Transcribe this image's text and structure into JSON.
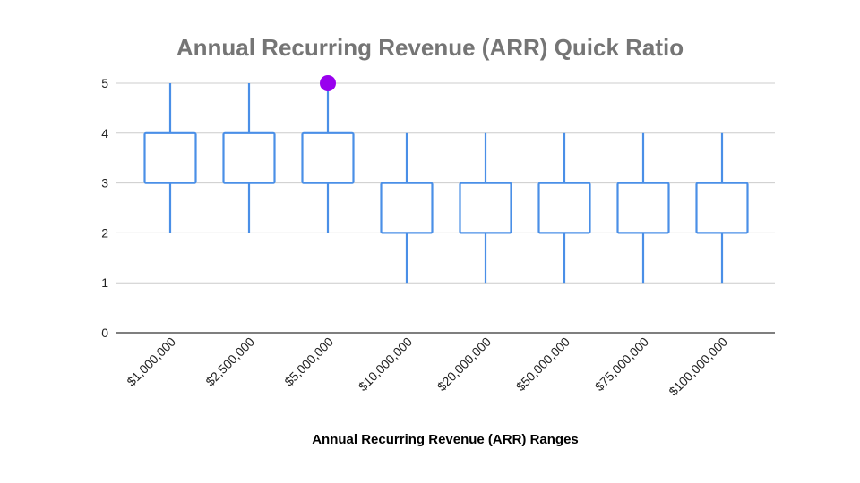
{
  "chart_data": {
    "type": "box",
    "title": "Annual Recurring Revenue (ARR) Quick Ratio",
    "xlabel": "Annual Recurring Revenue (ARR) Ranges",
    "ylabel": "",
    "ylim": [
      0,
      5
    ],
    "yticks": [
      "0",
      "1",
      "2",
      "3",
      "4",
      "5"
    ],
    "grid": true,
    "categories": [
      "$1,000,000",
      "$2,500,000",
      "$5,000,000",
      "$10,000,000",
      "$20,000,000",
      "$50,000,000",
      "$75,000,000",
      "$100,000,000"
    ],
    "boxes": [
      {
        "low": 2,
        "q1": 3,
        "q3": 4,
        "high": 5
      },
      {
        "low": 2,
        "q1": 3,
        "q3": 4,
        "high": 5
      },
      {
        "low": 2,
        "q1": 3,
        "q3": 4,
        "high": 5
      },
      {
        "low": 1,
        "q1": 2,
        "q3": 3,
        "high": 4
      },
      {
        "low": 1,
        "q1": 2,
        "q3": 3,
        "high": 4
      },
      {
        "low": 1,
        "q1": 2,
        "q3": 3,
        "high": 4
      },
      {
        "low": 1,
        "q1": 2,
        "q3": 3,
        "high": 4
      },
      {
        "low": 1,
        "q1": 2,
        "q3": 3,
        "high": 4
      }
    ],
    "highlight_points": [
      {
        "category": "$5,000,000",
        "value": 5
      }
    ],
    "colors": {
      "box": "#4a8fe7",
      "highlight": "#9900ee",
      "grid": "#cccccc",
      "axis": "#333333"
    }
  }
}
